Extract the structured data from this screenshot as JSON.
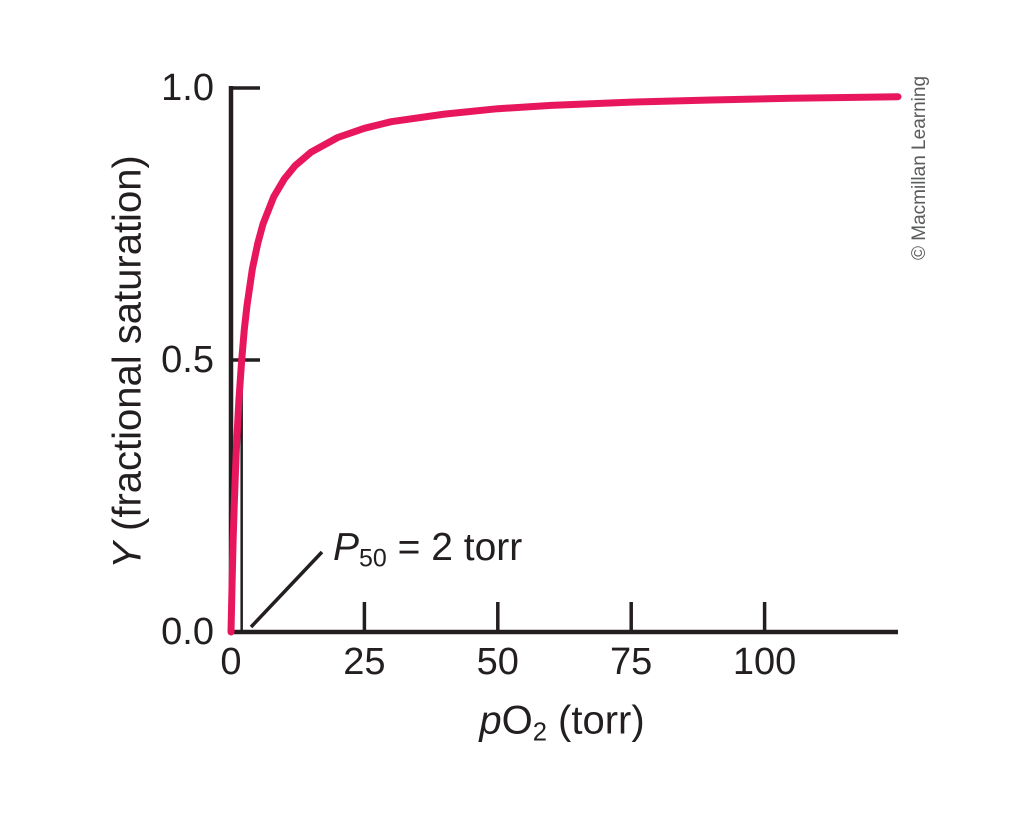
{
  "labels": {
    "y_axis": {
      "symbol": "Y",
      "rest": " (fractional saturation)"
    },
    "x_axis": {
      "symbol": "p",
      "element": "O",
      "sub": "2",
      "rest": " (torr)"
    },
    "annotation": {
      "symbol": "P",
      "sub": "50",
      "rest": " = 2 torr"
    },
    "credit": "© Macmillan Learning"
  },
  "colors": {
    "curve": "#e8175d",
    "axis": "#231f20",
    "text": "#231f20",
    "credit": "#5a5b5d",
    "background": "#ffffff"
  },
  "chart_data": {
    "type": "line",
    "title": "",
    "xlabel": "pO2 (torr)",
    "ylabel": "Y (fractional saturation)",
    "xlim": [
      0,
      125
    ],
    "ylim": [
      0,
      1.0
    ],
    "x_ticks": [
      0,
      25,
      50,
      75,
      100
    ],
    "x_tick_labels": [
      "0",
      "25",
      "50",
      "75",
      "100"
    ],
    "y_ticks": [
      0,
      0.5,
      1.0
    ],
    "y_tick_labels": [
      "0.0",
      "0.5",
      "1.0"
    ],
    "grid": false,
    "legend": false,
    "series": [
      {
        "name": "fractional saturation curve",
        "color": "#e8175d",
        "points": [
          [
            0,
            0
          ],
          [
            0.2,
            0.091
          ],
          [
            0.4,
            0.167
          ],
          [
            0.6,
            0.231
          ],
          [
            0.8,
            0.286
          ],
          [
            1,
            0.333
          ],
          [
            1.25,
            0.385
          ],
          [
            1.5,
            0.429
          ],
          [
            2,
            0.5
          ],
          [
            2.5,
            0.556
          ],
          [
            3,
            0.6
          ],
          [
            4,
            0.667
          ],
          [
            5,
            0.714
          ],
          [
            6,
            0.75
          ],
          [
            8,
            0.8
          ],
          [
            10,
            0.833
          ],
          [
            12,
            0.857
          ],
          [
            15,
            0.882
          ],
          [
            20,
            0.909
          ],
          [
            25,
            0.926
          ],
          [
            30,
            0.938
          ],
          [
            40,
            0.952
          ],
          [
            50,
            0.962
          ],
          [
            60,
            0.968
          ],
          [
            75,
            0.974
          ],
          [
            90,
            0.978
          ],
          [
            105,
            0.981
          ],
          [
            125,
            0.984
          ]
        ]
      }
    ],
    "annotation": {
      "text": "P50 = 2 torr",
      "x": 2,
      "marker_y_from": 0,
      "marker_y_to": 0.5
    }
  }
}
